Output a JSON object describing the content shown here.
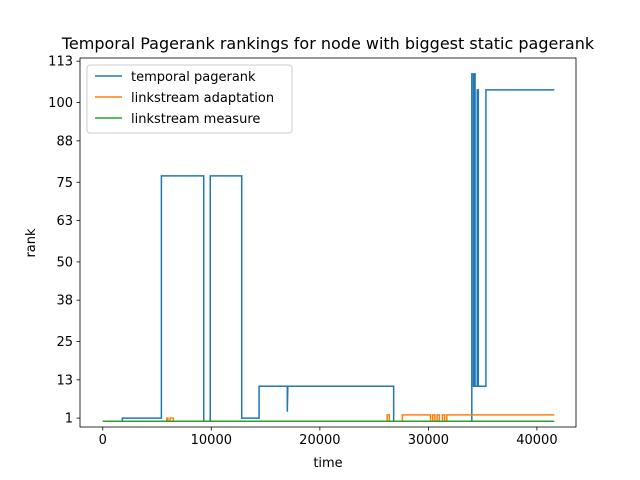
{
  "chart_data": {
    "type": "line",
    "title": "Temporal Pagerank rankings for node with biggest static pagerank",
    "xlabel": "time",
    "ylabel": "rank",
    "xlim": [
      -2100,
      43600
    ],
    "ylim": [
      -1.8,
      114
    ],
    "xticks": [
      0,
      10000,
      20000,
      30000,
      40000
    ],
    "xtick_labels": [
      "0",
      "10000",
      "20000",
      "30000",
      "40000"
    ],
    "yticks": [
      1,
      13,
      25,
      38,
      50,
      63,
      75,
      88,
      100,
      113
    ],
    "ytick_labels": [
      "1",
      "13",
      "25",
      "38",
      "50",
      "63",
      "75",
      "88",
      "100",
      "113"
    ],
    "grid": false,
    "legend_position": "upper-left",
    "series": [
      {
        "name": "temporal pagerank",
        "color": "#1f77b4",
        "points": [
          [
            0,
            0
          ],
          [
            1800,
            0
          ],
          [
            1800,
            1
          ],
          [
            5400,
            1
          ],
          [
            5400,
            77
          ],
          [
            9300,
            77
          ],
          [
            9300,
            0
          ],
          [
            9900,
            0
          ],
          [
            9900,
            77
          ],
          [
            12800,
            77
          ],
          [
            12800,
            1
          ],
          [
            14400,
            1
          ],
          [
            14400,
            11
          ],
          [
            17000,
            11
          ],
          [
            17000,
            3
          ],
          [
            17050,
            11
          ],
          [
            26800,
            11
          ],
          [
            26800,
            0
          ],
          [
            34000,
            0
          ],
          [
            34000,
            109
          ],
          [
            34150,
            109
          ],
          [
            34150,
            11
          ],
          [
            34250,
            11
          ],
          [
            34250,
            109
          ],
          [
            34300,
            109
          ],
          [
            34300,
            11
          ],
          [
            34500,
            11
          ],
          [
            34500,
            104
          ],
          [
            34600,
            104
          ],
          [
            34600,
            11
          ],
          [
            35300,
            11
          ],
          [
            35300,
            104
          ],
          [
            41600,
            104
          ]
        ]
      },
      {
        "name": "linkstream adaptation",
        "color": "#ff7f0e",
        "points": [
          [
            0,
            0
          ],
          [
            5900,
            0
          ],
          [
            5900,
            1
          ],
          [
            6000,
            1
          ],
          [
            6000,
            0
          ],
          [
            6200,
            0
          ],
          [
            6200,
            1
          ],
          [
            6500,
            1
          ],
          [
            6500,
            0
          ],
          [
            26200,
            0
          ],
          [
            26200,
            2
          ],
          [
            26400,
            2
          ],
          [
            26400,
            0
          ],
          [
            27600,
            0
          ],
          [
            27600,
            2
          ],
          [
            30200,
            2
          ],
          [
            30200,
            0
          ],
          [
            30400,
            0
          ],
          [
            30400,
            2
          ],
          [
            30600,
            2
          ],
          [
            30600,
            0
          ],
          [
            30800,
            0
          ],
          [
            30800,
            2
          ],
          [
            31000,
            2
          ],
          [
            31000,
            0
          ],
          [
            31300,
            0
          ],
          [
            31300,
            2
          ],
          [
            31500,
            2
          ],
          [
            31500,
            0
          ],
          [
            31700,
            0
          ],
          [
            31700,
            2
          ],
          [
            41600,
            2
          ]
        ]
      },
      {
        "name": "linkstream measure",
        "color": "#2ca02c",
        "points": [
          [
            0,
            0
          ],
          [
            41600,
            0
          ]
        ]
      }
    ]
  }
}
